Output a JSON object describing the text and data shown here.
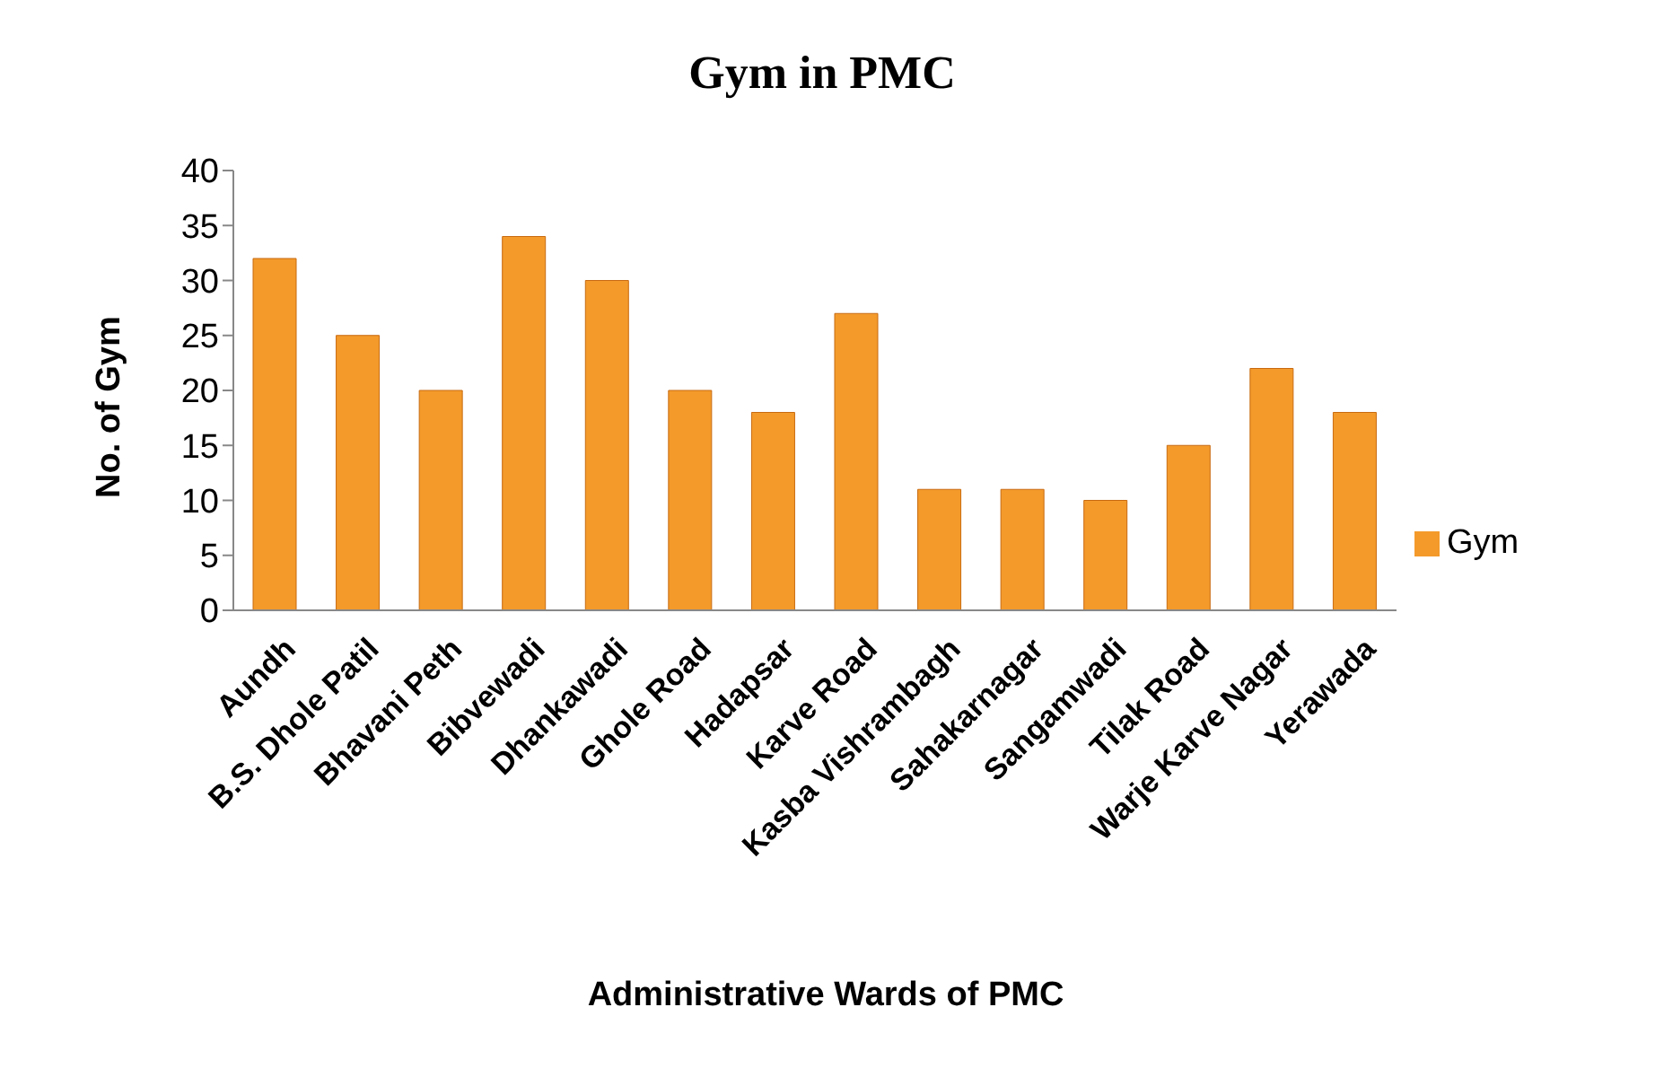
{
  "chart_data": {
    "type": "bar",
    "title": "Gym in PMC",
    "xlabel": "Administrative Wards of PMC",
    "ylabel": "No.  of Gym",
    "categories": [
      "Aundh",
      "B.S. Dhole Patil",
      "Bhavani Peth",
      "Bibvewadi",
      "Dhankawadi",
      "Ghole Road",
      "Hadapsar",
      "Karve Road",
      "Kasba Vishrambagh",
      "Sahakarnagar",
      "Sangamwadi",
      "Tilak Road",
      "Warje Karve Nagar",
      "Yerawada"
    ],
    "series": [
      {
        "name": "Gym",
        "color": "#f39a2b",
        "values": [
          32,
          25,
          20,
          34,
          30,
          20,
          18,
          27,
          11,
          11,
          10,
          15,
          22,
          18
        ]
      }
    ],
    "ylim": [
      0,
      40
    ],
    "yticks": [
      0,
      5,
      10,
      15,
      20,
      25,
      30,
      35,
      40
    ],
    "grid": false,
    "legend": "right"
  }
}
